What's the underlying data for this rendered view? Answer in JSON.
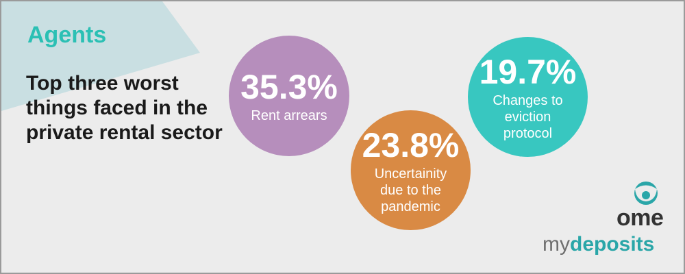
{
  "panel": {
    "eyebrow": "Agents",
    "headline": "Top three worst things faced in the private rental sector"
  },
  "stats": [
    {
      "value": "35.3%",
      "caption": "Rent arrears",
      "color": "#b68ebc"
    },
    {
      "value": "23.8%",
      "caption": "Uncertainity due to the pandemic",
      "color": "#d98a44"
    },
    {
      "value": "19.7%",
      "caption": "Changes to eviction protocol",
      "color": "#38c7c0"
    }
  ],
  "brand": {
    "mark_label": "ome",
    "wordmark_light": "my",
    "wordmark_bold": "deposits",
    "accent_color": "#2aa6a8",
    "corner_color": "#c9dfe2"
  }
}
